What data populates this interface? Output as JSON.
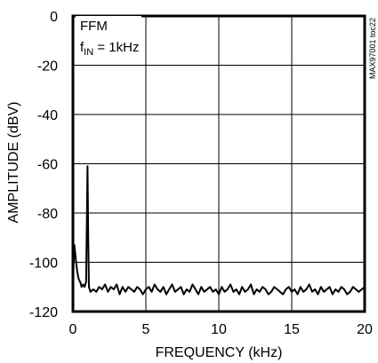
{
  "chart_data": {
    "type": "line",
    "xlabel": "FREQUENCY (kHz)",
    "ylabel": "AMPLITUDE (dBV)",
    "xlim": [
      0,
      20
    ],
    "ylim": [
      -120,
      0
    ],
    "xticks": [
      0,
      5,
      10,
      15,
      20
    ],
    "yticks": [
      0,
      -20,
      -40,
      -60,
      -80,
      -100,
      -120
    ],
    "grid": true,
    "annotations": {
      "line1": "FFM",
      "line2_prefix": "f",
      "line2_sub": "IN",
      "line2_suffix": " = 1kHz"
    },
    "side_code": "MAX97001 toc22",
    "series": [
      {
        "x": [
          0.0,
          0.1,
          0.2,
          0.3,
          0.4,
          0.5,
          0.6,
          0.7,
          0.8,
          0.9,
          0.95,
          1.0,
          1.05,
          1.1,
          1.2,
          1.4,
          1.6,
          1.8,
          2.0,
          2.2,
          2.4,
          2.6,
          2.8,
          3.0,
          3.2,
          3.4,
          3.6,
          3.8,
          4.0,
          4.2,
          4.4,
          4.6,
          4.8,
          5.0,
          5.2,
          5.4,
          5.6,
          5.8,
          6.0,
          6.2,
          6.4,
          6.6,
          6.8,
          7.0,
          7.2,
          7.4,
          7.6,
          7.8,
          8.0,
          8.2,
          8.4,
          8.6,
          8.8,
          9.0,
          9.2,
          9.4,
          9.6,
          9.8,
          10.0,
          10.2,
          10.4,
          10.6,
          10.8,
          11.0,
          11.2,
          11.4,
          11.6,
          11.8,
          12.0,
          12.2,
          12.4,
          12.6,
          12.8,
          13.0,
          13.2,
          13.4,
          13.6,
          13.8,
          14.0,
          14.2,
          14.4,
          14.6,
          14.8,
          15.0,
          15.2,
          15.4,
          15.6,
          15.8,
          16.0,
          16.2,
          16.4,
          16.6,
          16.8,
          17.0,
          17.2,
          17.4,
          17.6,
          17.8,
          18.0,
          18.2,
          18.4,
          18.6,
          18.8,
          19.0,
          19.2,
          19.4,
          19.6,
          19.8,
          20.0
        ],
        "y": [
          -108,
          -93,
          -99,
          -104,
          -107,
          -108,
          -110,
          -109,
          -110,
          -108,
          -85,
          -61,
          -90,
          -110,
          -112,
          -111,
          -112,
          -110,
          -111,
          -109,
          -112,
          -110,
          -111,
          -109,
          -113,
          -110,
          -112,
          -110,
          -111,
          -112,
          -110,
          -111,
          -113,
          -111,
          -110,
          -112,
          -109,
          -111,
          -112,
          -110,
          -113,
          -111,
          -109,
          -112,
          -111,
          -110,
          -113,
          -111,
          -112,
          -109,
          -111,
          -113,
          -110,
          -112,
          -111,
          -110,
          -112,
          -111,
          -113,
          -110,
          -112,
          -111,
          -109,
          -112,
          -111,
          -113,
          -110,
          -112,
          -111,
          -109,
          -113,
          -111,
          -112,
          -110,
          -111,
          -113,
          -112,
          -110,
          -111,
          -112,
          -113,
          -111,
          -110,
          -112,
          -111,
          -113,
          -110,
          -112,
          -111,
          -109,
          -112,
          -111,
          -113,
          -110,
          -112,
          -111,
          -110,
          -113,
          -111,
          -112,
          -110,
          -111,
          -113,
          -112,
          -110,
          -111,
          -112,
          -111,
          -110
        ]
      }
    ]
  }
}
